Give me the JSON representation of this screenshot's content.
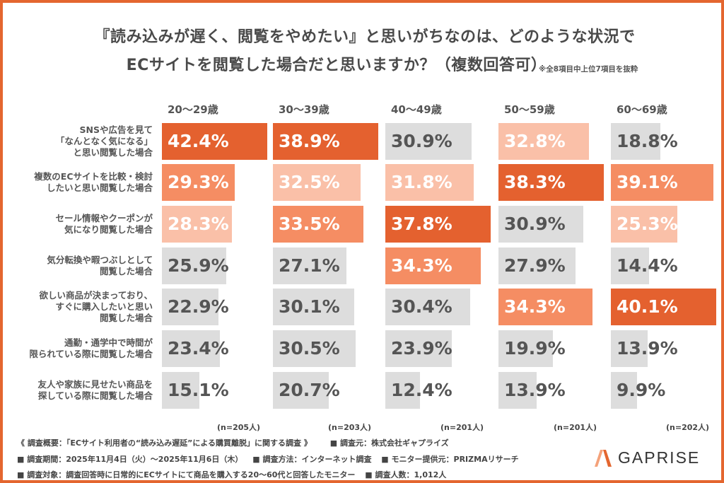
{
  "title_line1": "『読み込みが遅く、閲覧をやめたい』と思いがちなのは、どのような状況で",
  "title_line2": "ECサイトを閲覧した場合だと思いますか？（複数回答可）",
  "note": "※全8項目中上位7項目を抜粋",
  "colors": {
    "rank1": "#E4612F",
    "rank2": "#F58D63",
    "rank3": "#FAC0A8",
    "other": "#DDDDDD",
    "frame": "#E4662F"
  },
  "chart_data": {
    "type": "bar",
    "orientation": "horizontal",
    "layout": "small multiples per age group, top 3 highlighted in orange shades",
    "categories": [
      "SNSや広告を見て「なんとなく気になる」と思い閲覧した場合",
      "複数のECサイトを比較・検討したいと思い閲覧した場合",
      "セール情報やクーポンが気になり閲覧した場合",
      "気分転換や暇つぶしとして閲覧した場合",
      "欲しい商品が決まっており、すぐに購入したいと思い閲覧した場合",
      "通勤・通学中で時間が限られている際に閲覧した場合",
      "友人や家族に見せたい商品を探している際に閲覧した場合"
    ],
    "category_lines": [
      [
        "SNSや広告を見て",
        "「なんとなく気になる」",
        "と思い閲覧した場合"
      ],
      [
        "複数のECサイトを比較・検討",
        "したいと思い閲覧した場合"
      ],
      [
        "セール情報やクーポンが",
        "気になり閲覧した場合"
      ],
      [
        "気分転換や暇つぶしとして",
        "閲覧した場合"
      ],
      [
        "欲しい商品が決まっており、",
        "すぐに購入したいと思い",
        "閲覧した場合"
      ],
      [
        "通勤・通学中で時間が",
        "限られている際に閲覧した場合"
      ],
      [
        "友人や家族に見せたい商品を",
        "探している際に閲覧した場合"
      ]
    ],
    "unit": "%",
    "series": [
      {
        "name": "20〜29歳",
        "n": "(n=205人)",
        "values": [
          42.4,
          29.3,
          28.3,
          25.9,
          22.9,
          23.4,
          15.1
        ]
      },
      {
        "name": "30〜39歳",
        "n": "(n=203人)",
        "values": [
          38.9,
          32.5,
          33.5,
          27.1,
          30.1,
          30.5,
          20.7
        ]
      },
      {
        "name": "40〜49歳",
        "n": "(n=201人)",
        "values": [
          30.9,
          31.8,
          37.8,
          34.3,
          30.4,
          23.9,
          12.4
        ]
      },
      {
        "name": "50〜59歳",
        "n": "(n=201人)",
        "values": [
          32.8,
          38.3,
          30.9,
          27.9,
          34.3,
          19.9,
          13.9
        ]
      },
      {
        "name": "60〜69歳",
        "n": "(n=202人)",
        "values": [
          18.8,
          39.1,
          25.3,
          14.4,
          40.1,
          13.9,
          9.9
        ]
      }
    ]
  },
  "footer": {
    "line1a": "《 調査概要：「ECサイト利用者の“読み込み遅延”による購買離脱」に関する調査 》",
    "line1b": "■ 調査元：株式会社ギャプライズ",
    "line2a": "■ 調査期間：2025年11月4日（火）〜2025年11月6日（木）",
    "line2b": "■ 調査方法：インターネット調査",
    "line2c": "■ モニター提供元：PRIZMAリサーチ",
    "line3a": "■ 調査対象：調査回答時に日常的にECサイトにて商品を購入する20〜60代と回答したモニター",
    "line3b": "■ 調査人数：1,012人"
  },
  "logo": {
    "text": "GAPRISE",
    "icon": "gaprise-a-logo-icon"
  }
}
